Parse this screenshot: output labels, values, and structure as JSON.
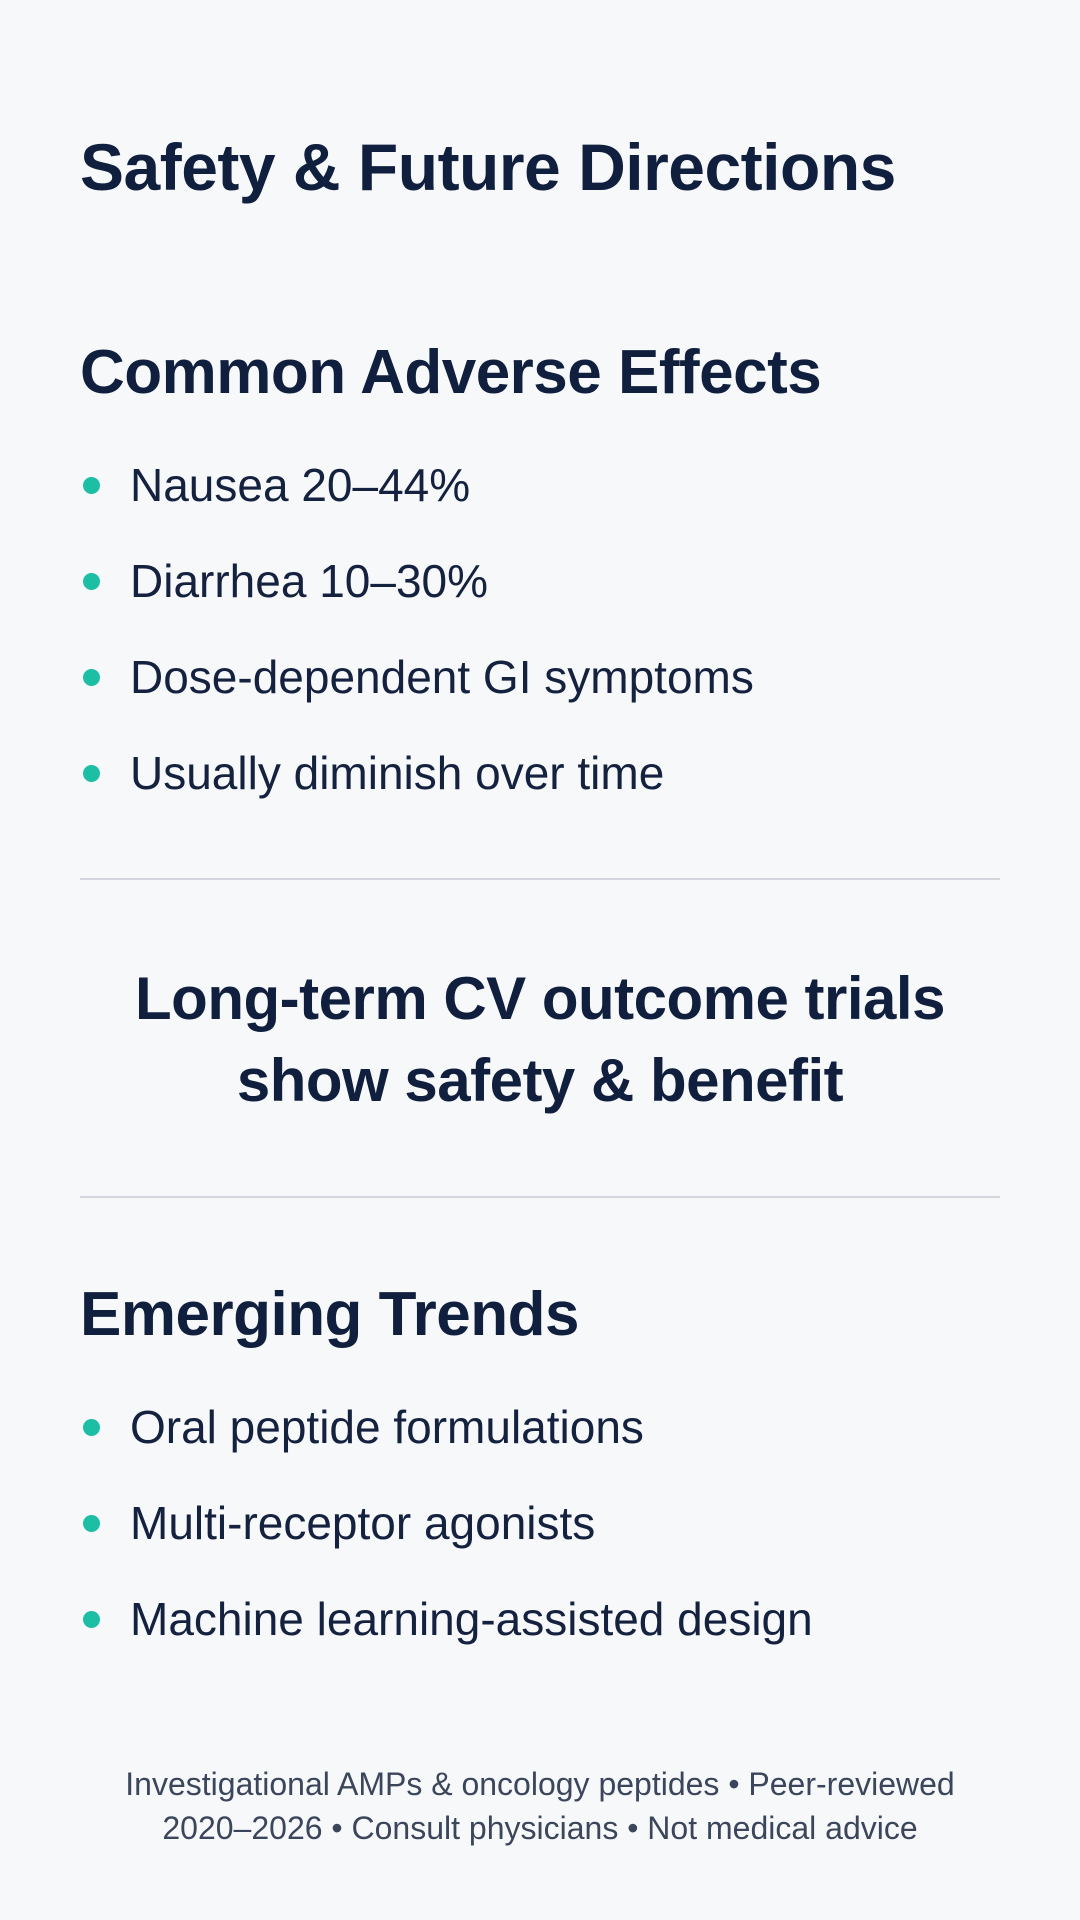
{
  "title": "Safety & Future Directions",
  "adverse_effects": {
    "heading": "Common Adverse Effects",
    "items": [
      "Nausea 20–44%",
      "Diarrhea 10–30%",
      "Dose-dependent GI symptoms",
      "Usually diminish over time"
    ]
  },
  "callout": {
    "line1": "Long-term CV outcome trials",
    "line2": "show safety & benefit"
  },
  "emerging_trends": {
    "heading": "Emerging Trends",
    "items": [
      "Oral peptide formulations",
      "Multi-receptor agonists",
      "Machine learning-assisted design"
    ]
  },
  "footer": {
    "line1": "Investigational AMPs & oncology peptides • Peer-reviewed",
    "line2": "2020–2026 • Consult physicians • Not medical advice"
  },
  "colors": {
    "background": "#f7f8fa",
    "heading": "#0f1f3d",
    "bullet": "#1dbfa4",
    "divider": "#d3d6dc"
  }
}
